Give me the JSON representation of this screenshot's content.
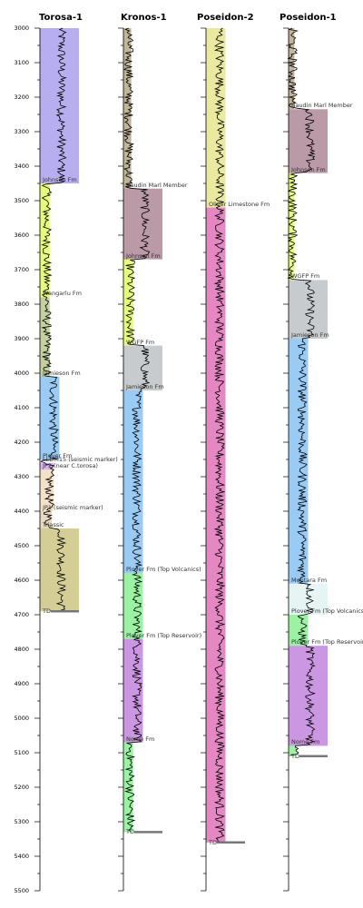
{
  "depth_axis": {
    "min": 3000,
    "max": 5500,
    "step": 100,
    "ticks": [
      "3000",
      "3100",
      "3200",
      "3300",
      "3400",
      "3500",
      "3600",
      "3700",
      "3800",
      "3900",
      "4000",
      "4100",
      "4200",
      "4300",
      "4400",
      "4500",
      "4600",
      "4700",
      "4800",
      "4900",
      "5000",
      "5100",
      "5200",
      "5300",
      "5400",
      "5500"
    ]
  },
  "wells": [
    {
      "name": "Torosa-1",
      "td_label": "TD",
      "td": 4690,
      "zones": [
        {
          "label": "",
          "top": 3000,
          "base": 3450,
          "color": "#b7aef0",
          "width": 1.0
        },
        {
          "label": "Johnson Fm",
          "top": 3450,
          "base": 3780,
          "color": "#e6fb7c",
          "width": 0.25
        },
        {
          "label": "Wangarlu Fm",
          "top": 3780,
          "base": 4010,
          "color": "#c4cfa0",
          "width": 0.25
        },
        {
          "label": "Jamieson Fm",
          "top": 4010,
          "base": 4250,
          "color": "#9acbf5",
          "width": 0.5
        },
        {
          "label": "Plover Fm",
          "top": 4250,
          "base": 4260,
          "color": "#ffffff",
          "width": 0.0
        },
        {
          "label": "LLDM15 (seismic marker)",
          "top": 4260,
          "base": 4280,
          "color": "#d8b4f0",
          "width": 0.35
        },
        {
          "label": "JP2 (near C.torosa)",
          "top": 4280,
          "base": 4400,
          "color": "#f4e2c8",
          "width": 0.35
        },
        {
          "label": "JP1 (seismic marker)",
          "top": 4400,
          "base": 4450,
          "color": "#e7d8c0",
          "width": 0.3
        },
        {
          "label": "Triassic",
          "top": 4450,
          "base": 4690,
          "color": "#d4cd96",
          "width": 1.0
        }
      ]
    },
    {
      "name": "Kronos-1",
      "td_label": "TD",
      "td": 5330,
      "zones": [
        {
          "label": "",
          "top": 3000,
          "base": 3465,
          "color": "#c1b59a",
          "width": 0.2
        },
        {
          "label": "Baudin Marl Member",
          "top": 3465,
          "base": 3670,
          "color": "#b99aa6",
          "width": 1.0
        },
        {
          "label": "Johnson Fm",
          "top": 3670,
          "base": 3920,
          "color": "#e6fb7c",
          "width": 0.25
        },
        {
          "label": "WGFP Fm",
          "top": 3920,
          "base": 4050,
          "color": "#c7cbce",
          "width": 1.0
        },
        {
          "label": "Jamieson Fm",
          "top": 4050,
          "base": 4580,
          "color": "#9acbf5",
          "width": 0.5
        },
        {
          "label": "Plover Fm (Top Volcanics)",
          "top": 4580,
          "base": 4770,
          "color": "#9cf2a3",
          "width": 0.5
        },
        {
          "label": "Plover Fm (Top Reservoir)",
          "top": 4770,
          "base": 5070,
          "color": "#cc97e2",
          "width": 0.5
        },
        {
          "label": "Nome Fm",
          "top": 5070,
          "base": 5330,
          "color": "#9cf2a3",
          "width": 0.25
        }
      ]
    },
    {
      "name": "Poseidon-2",
      "td_label": "TD",
      "td": 5360,
      "zones": [
        {
          "label": "",
          "top": 3000,
          "base": 3520,
          "color": "#e9ea9f",
          "width": 0.5
        },
        {
          "label": "Oliver Limestone Fm",
          "top": 3520,
          "base": 5360,
          "color": "#e487c3",
          "width": 0.5
        }
      ]
    },
    {
      "name": "Poseidon-1",
      "td_label": "TD",
      "td": 5110,
      "zones": [
        {
          "label": "",
          "top": 3000,
          "base": 3235,
          "color": "#c1b59a",
          "width": 0.15
        },
        {
          "label": "Baudin Marl Member",
          "top": 3235,
          "base": 3420,
          "color": "#b99aa6",
          "width": 1.0
        },
        {
          "label": "Johnson Fm",
          "top": 3420,
          "base": 3730,
          "color": "#e6fb7c",
          "width": 0.15
        },
        {
          "label": "WGFP Fm",
          "top": 3730,
          "base": 3900,
          "color": "#c7cbce",
          "width": 1.0
        },
        {
          "label": "Jamieson Fm",
          "top": 3900,
          "base": 4610,
          "color": "#9acbf5",
          "width": 0.5
        },
        {
          "label": "Montara Fm",
          "top": 4610,
          "base": 4700,
          "color": "#e6f5f3",
          "width": 1.0
        },
        {
          "label": "Plover Fm (Top Volcanics)",
          "top": 4700,
          "base": 4790,
          "color": "#9cf2a3",
          "width": 0.5
        },
        {
          "label": "Plover Fm (Top Reservoir)",
          "top": 4790,
          "base": 5080,
          "color": "#cc97e2",
          "width": 1.0
        },
        {
          "label": "Nome Fm",
          "top": 5080,
          "base": 5110,
          "color": "#9cf2a3",
          "width": 0.2
        }
      ]
    }
  ]
}
